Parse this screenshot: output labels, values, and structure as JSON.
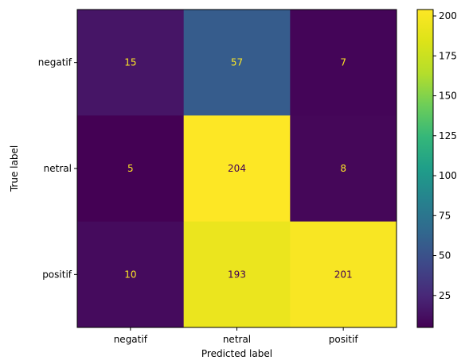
{
  "chart_data": {
    "type": "heatmap",
    "title": "",
    "xlabel": "Predicted label",
    "ylabel": "True label",
    "x_categories": [
      "negatif",
      "netral",
      "positif"
    ],
    "y_categories": [
      "negatif",
      "netral",
      "positif"
    ],
    "matrix": [
      [
        15,
        57,
        7
      ],
      [
        5,
        204,
        8
      ],
      [
        10,
        193,
        201
      ]
    ],
    "colormap": "viridis",
    "colorbar": {
      "min": 5,
      "max": 204,
      "ticks": [
        25,
        50,
        75,
        100,
        125,
        150,
        175,
        200
      ]
    },
    "colors": {
      "text_on_dark": "#fde725",
      "text_on_light": "#440154"
    }
  }
}
